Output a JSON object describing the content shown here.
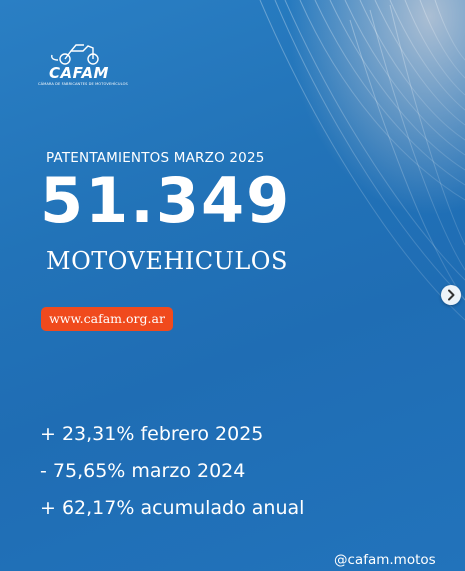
{
  "brand": {
    "logo_text": "CAFAM",
    "logo_subtext": "CÁMARA DE FABRICANTES DE MOTOVEHÍCULOS",
    "logo_icon": "motorcycle-icon"
  },
  "headline": {
    "subtitle": "PATENTAMIENTOS MARZO 2025",
    "number": "51.349",
    "unit": "MOTOVEHICULOS"
  },
  "website": "www.cafam.org.ar",
  "stats": [
    "+ 23,31% febrero 2025",
    "- 75,65% marzo 2024",
    "+ 62,17% acumulado anual"
  ],
  "handle": "@cafam.motos",
  "controls": {
    "next_icon": "chevron-right-icon"
  },
  "colors": {
    "background": "#2273b8",
    "badge": "#f04a1d",
    "text": "#ffffff"
  }
}
